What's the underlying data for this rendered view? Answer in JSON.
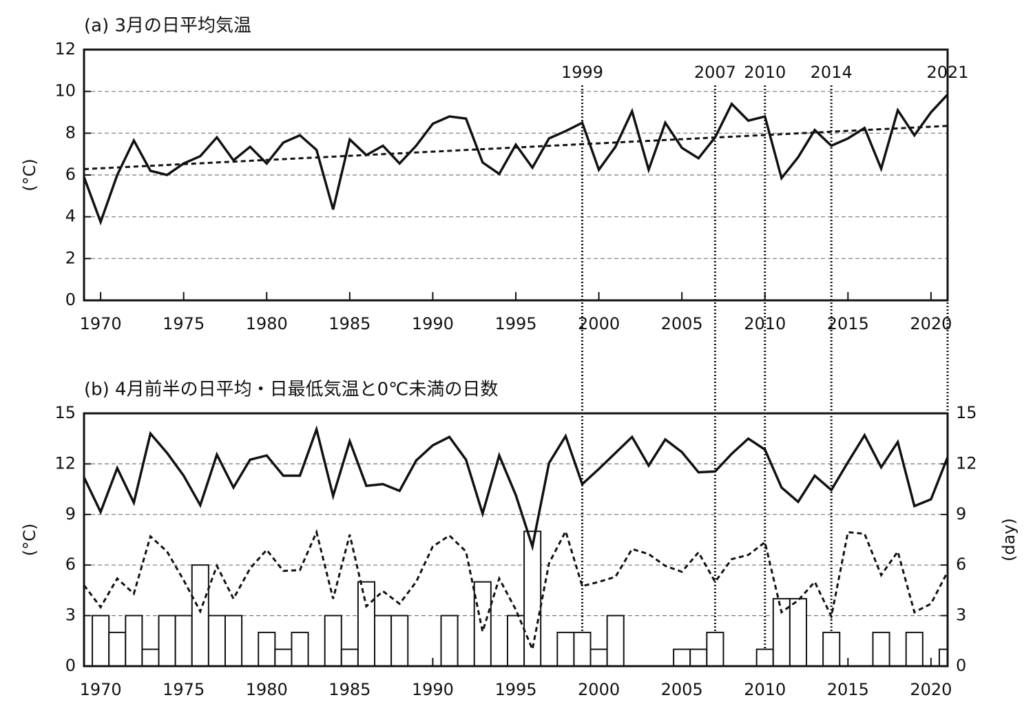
{
  "chart_data": [
    {
      "type": "line",
      "title": "(a) 3月の日平均気温",
      "y_label": "(°C)",
      "x": [
        1969,
        1970,
        1971,
        1972,
        1973,
        1974,
        1975,
        1976,
        1977,
        1978,
        1979,
        1980,
        1981,
        1982,
        1983,
        1984,
        1985,
        1986,
        1987,
        1988,
        1989,
        1990,
        1991,
        1992,
        1993,
        1994,
        1995,
        1996,
        1997,
        1998,
        1999,
        2000,
        2001,
        2002,
        2003,
        2004,
        2005,
        2006,
        2007,
        2008,
        2009,
        2010,
        2011,
        2012,
        2013,
        2014,
        2015,
        2016,
        2017,
        2018,
        2019,
        2020,
        2021
      ],
      "series": [
        {
          "type": "line",
          "color": "#111111",
          "dash": "solid",
          "values": [
            5.9,
            3.75,
            6.0,
            7.65,
            6.2,
            6.0,
            6.55,
            6.9,
            7.8,
            6.7,
            7.35,
            6.55,
            7.55,
            7.9,
            7.2,
            4.35,
            7.7,
            6.95,
            7.4,
            6.55,
            7.4,
            8.45,
            8.8,
            8.7,
            6.6,
            6.05,
            7.45,
            6.35,
            7.75,
            8.1,
            8.5,
            6.25,
            7.35,
            9.05,
            6.25,
            8.5,
            7.3,
            6.8,
            7.8,
            9.4,
            8.6,
            8.8,
            5.85,
            6.85,
            8.15,
            7.4,
            7.75,
            8.25,
            6.3,
            9.1,
            7.9,
            9.0,
            9.85
          ]
        },
        {
          "type": "line",
          "color": "#111111",
          "dash": "dashed",
          "x": [
            1969,
            2021
          ],
          "values": [
            6.28,
            8.35
          ]
        }
      ],
      "markers": [
        1999,
        2007,
        2010,
        2014,
        2021
      ],
      "xlim": [
        1969,
        2021
      ],
      "xticks": [
        1970,
        1975,
        1980,
        1985,
        1990,
        1995,
        2000,
        2005,
        2010,
        2015,
        2020
      ],
      "ylim": [
        0,
        12
      ],
      "yticks": [
        0,
        2,
        4,
        6,
        8,
        10,
        12
      ],
      "grid": true
    },
    {
      "type": "combo",
      "title": "(b) 4月前半の日平均・日最低気温と0℃未満の日数",
      "y_label": "(°C)",
      "y2_label": "(day)",
      "x": [
        1969,
        1970,
        1971,
        1972,
        1973,
        1974,
        1975,
        1976,
        1977,
        1978,
        1979,
        1980,
        1981,
        1982,
        1983,
        1984,
        1985,
        1986,
        1987,
        1988,
        1989,
        1990,
        1991,
        1992,
        1993,
        1994,
        1995,
        1996,
        1997,
        1998,
        1999,
        2000,
        2001,
        2002,
        2003,
        2004,
        2005,
        2006,
        2007,
        2008,
        2009,
        2010,
        2011,
        2012,
        2013,
        2014,
        2015,
        2016,
        2017,
        2018,
        2019,
        2020,
        2021
      ],
      "series": [
        {
          "type": "bar",
          "axis": "y2",
          "color": "#ffffff",
          "values": [
            0,
            3,
            2,
            3,
            1,
            3,
            3,
            6,
            3,
            3,
            0,
            2,
            1,
            2,
            0,
            3,
            1,
            5,
            3,
            3,
            0,
            0,
            3,
            0,
            5,
            0,
            3,
            8,
            0,
            2,
            2,
            1,
            3,
            0,
            0,
            0,
            1,
            1,
            2,
            0,
            0,
            1,
            4,
            4,
            0,
            2,
            0,
            0,
            2,
            0,
            2,
            0,
            1
          ]
        },
        {
          "type": "line",
          "color": "#111111",
          "dash": "solid",
          "values": [
            11.2,
            9.15,
            11.75,
            9.7,
            13.8,
            12.65,
            11.3,
            9.55,
            12.55,
            10.6,
            12.25,
            12.5,
            11.3,
            11.3,
            14.05,
            10.1,
            13.35,
            10.7,
            10.8,
            10.4,
            12.2,
            13.1,
            13.6,
            12.25,
            9.05,
            12.5,
            10.15,
            7.1,
            12.05,
            13.65,
            10.8,
            11.7,
            12.65,
            13.6,
            11.9,
            13.45,
            12.7,
            11.5,
            11.55,
            12.6,
            13.5,
            12.85,
            10.6,
            9.75,
            11.3,
            10.45,
            12.1,
            13.7,
            11.8,
            13.3,
            9.5,
            9.9,
            12.4
          ]
        },
        {
          "type": "line",
          "color": "#111111",
          "dash": "dashed",
          "values": [
            4.8,
            3.5,
            5.2,
            4.3,
            7.7,
            6.8,
            5.1,
            3.25,
            5.95,
            4.0,
            5.8,
            6.9,
            5.65,
            5.7,
            7.95,
            4.0,
            7.8,
            3.55,
            4.45,
            3.7,
            5.0,
            7.1,
            7.75,
            6.8,
            2.05,
            5.2,
            3.35,
            1.0,
            6.1,
            8.0,
            4.75,
            5.0,
            5.3,
            6.95,
            6.65,
            5.95,
            5.6,
            6.75,
            5.0,
            6.35,
            6.6,
            7.35,
            3.2,
            3.9,
            5.0,
            2.95,
            7.95,
            7.85,
            5.4,
            6.8,
            3.2,
            3.7,
            5.6
          ]
        }
      ],
      "xlim": [
        1969,
        2021
      ],
      "xticks": [
        1970,
        1975,
        1980,
        1985,
        1990,
        1995,
        2000,
        2005,
        2010,
        2015,
        2020
      ],
      "ylim": [
        0,
        15
      ],
      "yticks": [
        0,
        3,
        6,
        9,
        12,
        15
      ],
      "y2lim": [
        0,
        15
      ],
      "y2ticks": [
        0,
        3,
        6,
        9,
        12,
        15
      ],
      "grid": true
    }
  ]
}
